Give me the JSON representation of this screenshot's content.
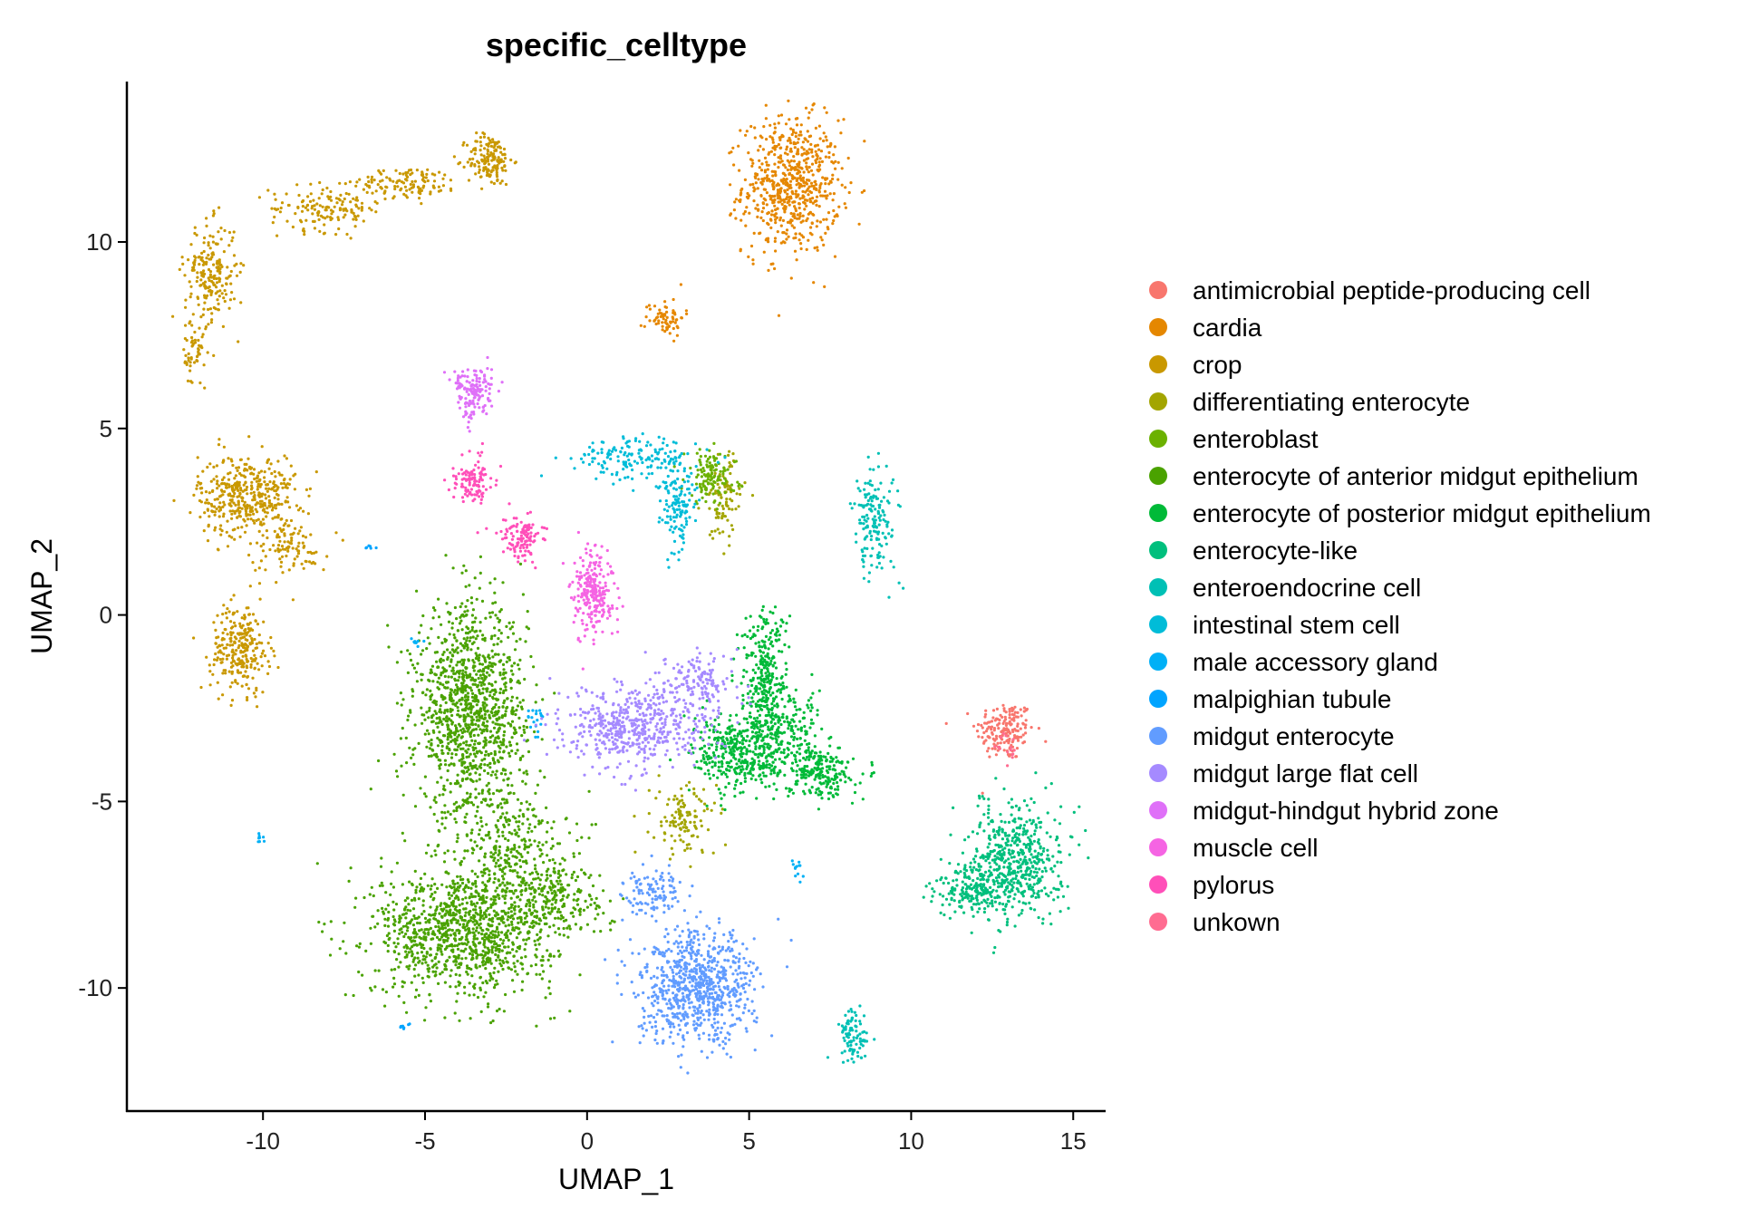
{
  "chart_data": {
    "type": "scatter",
    "title": "specific_celltype",
    "xlabel": "UMAP_1",
    "ylabel": "UMAP_2",
    "xlim": [
      -14.2,
      16
    ],
    "ylim": [
      -13.3,
      14.3
    ],
    "xticks": [
      {
        "value": -10,
        "label": "-10"
      },
      {
        "value": -5,
        "label": "-5"
      },
      {
        "value": 0,
        "label": "0"
      },
      {
        "value": 5,
        "label": "5"
      },
      {
        "value": 10,
        "label": "10"
      },
      {
        "value": 15,
        "label": "15"
      }
    ],
    "yticks": [
      {
        "value": -10,
        "label": "-10"
      },
      {
        "value": -5,
        "label": "-5"
      },
      {
        "value": 0,
        "label": "0"
      },
      {
        "value": 5,
        "label": "5"
      },
      {
        "value": 10,
        "label": "10"
      }
    ],
    "grid": false,
    "legend_position": "right",
    "series": [
      {
        "name": "antimicrobial peptide-producing cell",
        "color": "#F8766D",
        "clusters": [
          {
            "cx": 12.9,
            "cy": -3.1,
            "sx": 0.45,
            "sy": 0.4,
            "n": 180
          }
        ]
      },
      {
        "name": "cardia",
        "color": "#E58700",
        "clusters": [
          {
            "cx": 6.3,
            "cy": 11.5,
            "sx": 0.75,
            "sy": 0.9,
            "n": 650
          },
          {
            "cx": 2.4,
            "cy": 8.0,
            "sx": 0.3,
            "sy": 0.25,
            "n": 70
          }
        ]
      },
      {
        "name": "crop",
        "color": "#C99800",
        "clusters": [
          {
            "cx": -3.0,
            "cy": 12.2,
            "sx": 0.35,
            "sy": 0.35,
            "n": 160
          },
          {
            "cx": -5.5,
            "cy": 11.6,
            "sx": 0.8,
            "sy": 0.2,
            "n": 120
          },
          {
            "cx": -8.0,
            "cy": 10.9,
            "sx": 0.9,
            "sy": 0.3,
            "n": 150
          },
          {
            "cx": -11.6,
            "cy": 9.2,
            "sx": 0.4,
            "sy": 0.65,
            "n": 200
          },
          {
            "cx": -12.1,
            "cy": 7.0,
            "sx": 0.2,
            "sy": 0.55,
            "n": 60
          },
          {
            "cx": -10.5,
            "cy": 3.2,
            "sx": 0.75,
            "sy": 0.55,
            "n": 420
          },
          {
            "cx": -9.2,
            "cy": 1.8,
            "sx": 0.6,
            "sy": 0.35,
            "n": 90
          },
          {
            "cx": -10.7,
            "cy": -0.9,
            "sx": 0.45,
            "sy": 0.6,
            "n": 260
          }
        ]
      },
      {
        "name": "differentiating enterocyte",
        "color": "#A3A500",
        "clusters": [
          {
            "cx": 3.0,
            "cy": -5.5,
            "sx": 0.5,
            "sy": 0.5,
            "n": 120
          },
          {
            "cx": 4.2,
            "cy": 3.1,
            "sx": 0.3,
            "sy": 0.6,
            "n": 90
          }
        ]
      },
      {
        "name": "enteroblast",
        "color": "#6BB100",
        "clusters": [
          {
            "cx": 3.8,
            "cy": 3.7,
            "sx": 0.4,
            "sy": 0.35,
            "n": 130
          }
        ]
      },
      {
        "name": "enterocyte of anterior midgut epithelium",
        "color": "#4AA200",
        "clusters": [
          {
            "cx": -3.6,
            "cy": -2.6,
            "sx": 0.85,
            "sy": 1.4,
            "n": 1200
          },
          {
            "cx": -3.8,
            "cy": -8.5,
            "sx": 1.4,
            "sy": 0.85,
            "n": 1100
          },
          {
            "cx": -2.4,
            "cy": -6.2,
            "sx": 0.9,
            "sy": 0.8,
            "n": 300
          },
          {
            "cx": -1.0,
            "cy": -7.6,
            "sx": 0.8,
            "sy": 0.5,
            "n": 200
          }
        ]
      },
      {
        "name": "enterocyte of posterior midgut epithelium",
        "color": "#00BA38",
        "clusters": [
          {
            "cx": 5.5,
            "cy": -1.6,
            "sx": 0.35,
            "sy": 0.9,
            "n": 280
          },
          {
            "cx": 4.8,
            "cy": -3.7,
            "sx": 0.75,
            "sy": 0.55,
            "n": 420
          },
          {
            "cx": 7.2,
            "cy": -4.2,
            "sx": 0.5,
            "sy": 0.35,
            "n": 220
          },
          {
            "cx": 6.2,
            "cy": -3.0,
            "sx": 0.6,
            "sy": 0.5,
            "n": 160
          }
        ]
      },
      {
        "name": "enterocyte-like",
        "color": "#00BF7D",
        "clusters": [
          {
            "cx": 13.2,
            "cy": -6.6,
            "sx": 0.7,
            "sy": 0.75,
            "n": 560
          },
          {
            "cx": 11.8,
            "cy": -7.4,
            "sx": 0.5,
            "sy": 0.35,
            "n": 160
          }
        ]
      },
      {
        "name": "enteroendocrine cell",
        "color": "#00C0B5",
        "clusters": [
          {
            "cx": 8.9,
            "cy": 2.6,
            "sx": 0.35,
            "sy": 0.75,
            "n": 160
          },
          {
            "cx": 8.2,
            "cy": -11.3,
            "sx": 0.25,
            "sy": 0.35,
            "n": 90
          }
        ]
      },
      {
        "name": "intestinal stem cell",
        "color": "#00BCD8",
        "clusters": [
          {
            "cx": 1.5,
            "cy": 4.2,
            "sx": 0.9,
            "sy": 0.3,
            "n": 150
          },
          {
            "cx": 2.8,
            "cy": 3.0,
            "sx": 0.3,
            "sy": 0.7,
            "n": 140
          }
        ]
      },
      {
        "name": "male accessory gland",
        "color": "#00B0F6",
        "clusters": [
          {
            "cx": -10.1,
            "cy": -6.0,
            "sx": 0.06,
            "sy": 0.08,
            "n": 8
          },
          {
            "cx": 6.5,
            "cy": -6.8,
            "sx": 0.12,
            "sy": 0.15,
            "n": 12
          },
          {
            "cx": -1.6,
            "cy": -2.8,
            "sx": 0.15,
            "sy": 0.2,
            "n": 20
          },
          {
            "cx": -5.3,
            "cy": -0.7,
            "sx": 0.1,
            "sy": 0.05,
            "n": 8
          }
        ]
      },
      {
        "name": "malpighian tubule",
        "color": "#00A4FF",
        "clusters": [
          {
            "cx": -5.6,
            "cy": -11.0,
            "sx": 0.08,
            "sy": 0.05,
            "n": 8
          },
          {
            "cx": -6.7,
            "cy": 1.8,
            "sx": 0.08,
            "sy": 0.04,
            "n": 6
          }
        ]
      },
      {
        "name": "midgut enterocyte",
        "color": "#619CFF",
        "clusters": [
          {
            "cx": 3.4,
            "cy": -10.0,
            "sx": 0.9,
            "sy": 0.75,
            "n": 800
          },
          {
            "cx": 2.0,
            "cy": -7.4,
            "sx": 0.45,
            "sy": 0.3,
            "n": 110
          }
        ]
      },
      {
        "name": "midgut large flat cell",
        "color": "#A58AFF",
        "clusters": [
          {
            "cx": 1.5,
            "cy": -3.0,
            "sx": 1.1,
            "sy": 0.55,
            "n": 520
          },
          {
            "cx": 3.5,
            "cy": -1.8,
            "sx": 0.6,
            "sy": 0.4,
            "n": 140
          }
        ]
      },
      {
        "name": "midgut-hindgut hybrid zone",
        "color": "#DF70F8",
        "clusters": [
          {
            "cx": -3.5,
            "cy": 6.0,
            "sx": 0.3,
            "sy": 0.35,
            "n": 150
          }
        ]
      },
      {
        "name": "muscle cell",
        "color": "#F564E3",
        "clusters": [
          {
            "cx": 0.2,
            "cy": 0.6,
            "sx": 0.3,
            "sy": 0.55,
            "n": 250
          }
        ]
      },
      {
        "name": "pylorus",
        "color": "#FF4FB9",
        "clusters": [
          {
            "cx": -3.5,
            "cy": 3.6,
            "sx": 0.3,
            "sy": 0.35,
            "n": 110
          },
          {
            "cx": -2.0,
            "cy": 2.1,
            "sx": 0.3,
            "sy": 0.3,
            "n": 120
          }
        ]
      },
      {
        "name": "unkown",
        "color": "#FF6C91",
        "clusters": [
          {
            "cx": 12.9,
            "cy": -3.6,
            "sx": 0.2,
            "sy": 0.2,
            "n": 15
          }
        ]
      }
    ]
  }
}
